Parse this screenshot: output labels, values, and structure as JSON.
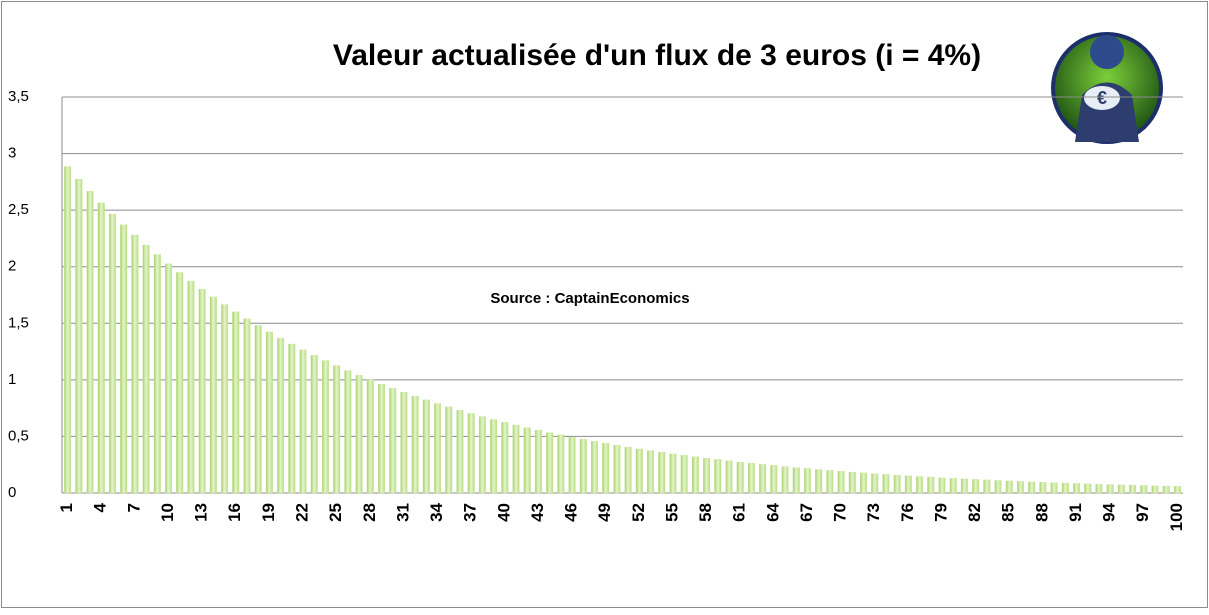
{
  "chart_data": {
    "type": "bar",
    "title": "Valeur actualisée d'un flux de 3 euros (i = 4%)",
    "annotation": "Source : CaptainEconomics",
    "categories": [
      1,
      null,
      null,
      4,
      null,
      null,
      7,
      null,
      null,
      10,
      null,
      null,
      13,
      null,
      null,
      16,
      null,
      null,
      19,
      null,
      null,
      22,
      null,
      null,
      25,
      null,
      null,
      28,
      null,
      null,
      31,
      null,
      null,
      34,
      null,
      null,
      37,
      null,
      null,
      40,
      null,
      null,
      43,
      null,
      null,
      46,
      null,
      null,
      49,
      null,
      null,
      52,
      null,
      null,
      55,
      null,
      null,
      58,
      null,
      null,
      61,
      null,
      null,
      64,
      null,
      null,
      67,
      null,
      null,
      70,
      null,
      null,
      73,
      null,
      null,
      76,
      null,
      null,
      79,
      null,
      null,
      82,
      null,
      null,
      85,
      null,
      null,
      88,
      null,
      null,
      91,
      null,
      null,
      94,
      null,
      null,
      97,
      null,
      null,
      100
    ],
    "values": [
      2.885,
      2.774,
      2.667,
      2.564,
      2.466,
      2.371,
      2.28,
      2.192,
      2.108,
      2.027,
      1.949,
      1.874,
      1.802,
      1.733,
      1.666,
      1.602,
      1.54,
      1.481,
      1.424,
      1.369,
      1.317,
      1.266,
      1.217,
      1.171,
      1.126,
      1.082,
      1.041,
      1.001,
      0.962,
      0.925,
      0.89,
      0.855,
      0.823,
      0.791,
      0.761,
      0.731,
      0.703,
      0.676,
      0.65,
      0.625,
      0.601,
      0.578,
      0.556,
      0.534,
      0.514,
      0.494,
      0.475,
      0.457,
      0.439,
      0.422,
      0.406,
      0.39,
      0.375,
      0.361,
      0.347,
      0.334,
      0.321,
      0.308,
      0.297,
      0.285,
      0.274,
      0.264,
      0.253,
      0.244,
      0.234,
      0.225,
      0.217,
      0.208,
      0.2,
      0.193,
      0.185,
      0.178,
      0.171,
      0.165,
      0.158,
      0.152,
      0.146,
      0.141,
      0.135,
      0.13,
      0.125,
      0.12,
      0.116,
      0.111,
      0.107,
      0.103,
      0.099,
      0.095,
      0.091,
      0.088,
      0.085,
      0.081,
      0.078,
      0.075,
      0.072,
      0.07,
      0.067,
      0.064,
      0.062,
      0.059
    ],
    "color": "#c8e89c",
    "ylim": [
      0,
      3.5
    ],
    "yticks": [
      0,
      {
        "value": 0.5,
        "label": "0,5"
      },
      1,
      {
        "value": 1.5,
        "label": "1,5"
      },
      2,
      {
        "value": 2.5,
        "label": "2,5"
      },
      3,
      {
        "value": 3.5,
        "label": "3,5"
      }
    ],
    "grid": true
  }
}
